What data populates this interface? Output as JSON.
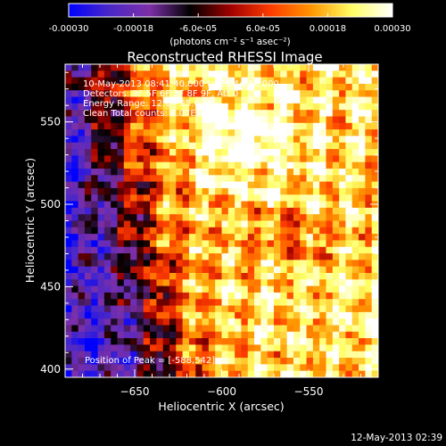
{
  "colorbar": {
    "ticks": [
      "-0.00030",
      "-0.00018",
      "-6.0e-05",
      "6.0e-05",
      "0.00018",
      "0.00030"
    ],
    "tick_values": [
      -0.0003,
      -0.00018,
      -6e-05,
      6e-05,
      0.00018,
      0.0003
    ],
    "range": [
      -0.0003,
      0.0003
    ],
    "unit_label": "(photons cm⁻² s⁻¹ asec⁻²)"
  },
  "annotations": {
    "time_range": "10-May-2013 08:41:40.000 to 08:44:48.000",
    "detectors": "Detectors: 3F 5F 6F 7F 8F 9F, Att 0",
    "energy": "Energy Range: 12.0 - 25.0 keV",
    "clean": "Clean    Total counts: 6.07E+03",
    "peak": "Position of Peak = [-588,542]"
  },
  "footer": {
    "date": "12-May-2013 02:39"
  },
  "chart_data": {
    "type": "heatmap",
    "title": "Reconstructed RHESSI Image",
    "xlabel": "Heliocentric X (arcsec)",
    "ylabel": "Heliocentric Y (arcsec)",
    "xlim": [
      -690,
      -510
    ],
    "ylim": [
      395,
      585
    ],
    "x_ticks": [
      -650,
      -600,
      -550
    ],
    "x_tick_labels": [
      "−650",
      "−600",
      "−550"
    ],
    "y_ticks": [
      400,
      450,
      500,
      550
    ],
    "y_tick_labels": [
      "400",
      "450",
      "500",
      "550"
    ],
    "peak": [
      -588,
      542
    ],
    "colormap": [
      "#0000ff",
      "#4a28c8",
      "#7d2fa8",
      "#000000",
      "#a00000",
      "#ff3c00",
      "#ff9600",
      "#ffff64",
      "#ffffff"
    ]
  }
}
